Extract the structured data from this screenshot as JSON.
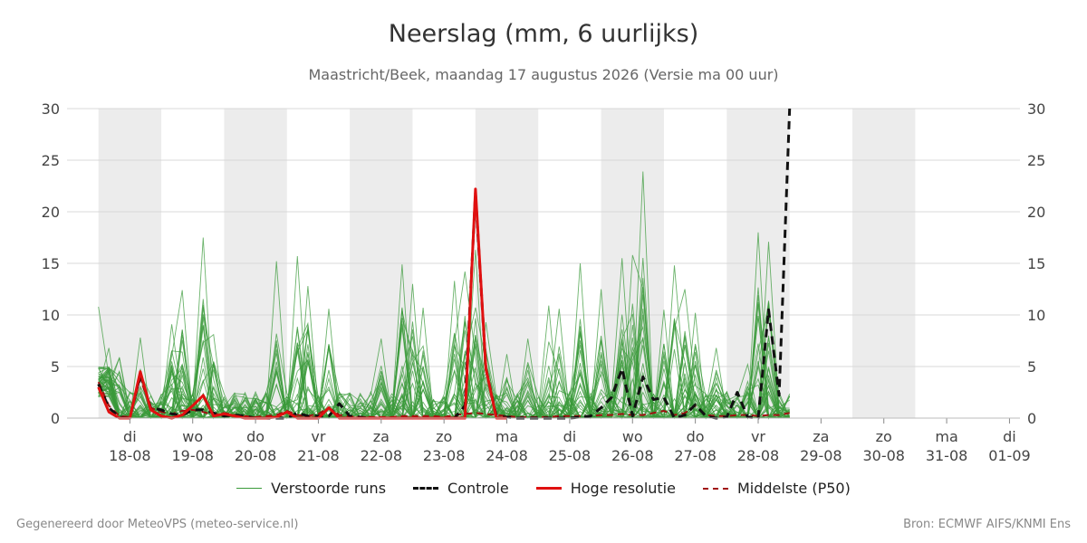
{
  "header": {
    "title": "Neerslag (mm, 6 uurlijks)",
    "subtitle": "Maastricht/Beek, maandag 17 augustus 2026 (Versie ma 00 uur)"
  },
  "footer": {
    "left": "Gegenereerd door MeteoVPS (meteo-service.nl)",
    "right": "Bron: ECMWF AIFS/KNMI Ens"
  },
  "colors": {
    "ensemble": "#3a9a3a",
    "control": "#111111",
    "hires": "#e01010",
    "median": "#a01010",
    "shade": "#ececec",
    "grid": "#d8d8d8"
  },
  "chart_data": {
    "type": "line",
    "ylim": [
      0,
      30
    ],
    "yticks": [
      0,
      5,
      10,
      15,
      20,
      25,
      30
    ],
    "xlim": [
      -3,
      88
    ],
    "day_ticks": [
      {
        "day": "di",
        "date": "18-08"
      },
      {
        "day": "wo",
        "date": "19-08"
      },
      {
        "day": "do",
        "date": "20-08"
      },
      {
        "day": "vr",
        "date": "21-08"
      },
      {
        "day": "za",
        "date": "22-08"
      },
      {
        "day": "zo",
        "date": "23-08"
      },
      {
        "day": "ma",
        "date": "24-08"
      },
      {
        "day": "di",
        "date": "25-08"
      },
      {
        "day": "wo",
        "date": "26-08"
      },
      {
        "day": "do",
        "date": "27-08"
      },
      {
        "day": "vr",
        "date": "28-08"
      },
      {
        "day": "za",
        "date": "29-08"
      },
      {
        "day": "zo",
        "date": "30-08"
      },
      {
        "day": "ma",
        "date": "31-08"
      },
      {
        "day": "di",
        "date": "01-09"
      }
    ],
    "shaded_days": [
      0,
      2,
      4,
      6,
      8,
      10,
      12
    ],
    "series": [
      {
        "name": "Controle",
        "style": "dashed",
        "color": "#111111",
        "values": [
          3.3,
          1.0,
          0.1,
          0.0,
          4.2,
          1.0,
          0.8,
          0.4,
          0.3,
          0.8,
          0.8,
          0.5,
          0.2,
          0.3,
          0.2,
          0.0,
          0.0,
          0.0,
          0.0,
          0.5,
          0.2,
          0.2,
          0.2,
          1.4,
          0.2,
          0.1,
          0.0,
          0.0,
          0.0,
          0.0,
          0.0,
          0.0,
          0.0,
          0.0,
          0.0,
          1.2,
          21.8,
          4.8,
          0.2,
          0.1,
          0.0,
          0.0,
          0.0,
          0.0,
          0.0,
          0.0,
          0.1,
          0.2,
          1.0,
          2.0,
          4.8,
          0.2,
          4.0,
          1.8,
          2.0,
          0.0,
          0.3,
          1.3,
          0.2,
          0.0,
          0.1,
          2.5,
          0.1,
          0.0,
          10.5,
          2.2,
          30.0
        ]
      },
      {
        "name": "Hoge resolutie",
        "style": "solid",
        "color": "#e01010",
        "values": [
          3.0,
          0.6,
          0.0,
          0.0,
          4.5,
          0.8,
          0.2,
          0.0,
          0.3,
          1.2,
          2.2,
          0.2,
          0.4,
          0.2,
          0.0,
          0.0,
          0.0,
          0.1,
          0.6,
          0.0,
          0.0,
          0.0,
          1.0,
          0.0,
          0.0,
          0.0,
          0.0,
          0.0,
          0.0,
          0.0,
          0.0,
          0.0,
          0.0,
          0.0,
          0.0,
          0.0,
          22.2,
          4.8,
          0.0,
          0.0
        ]
      },
      {
        "name": "Middelste (P50)",
        "style": "dashed",
        "color": "#a01010",
        "values": [
          3.5,
          1.2,
          0.2,
          0.1,
          3.8,
          1.0,
          0.6,
          0.4,
          0.7,
          0.8,
          0.6,
          0.3,
          0.5,
          0.3,
          0.2,
          0.1,
          0.2,
          0.3,
          0.7,
          0.3,
          0.2,
          0.4,
          1.0,
          0.3,
          0.2,
          0.1,
          0.1,
          0.1,
          0.1,
          0.2,
          0.2,
          0.2,
          0.2,
          0.1,
          0.3,
          0.4,
          0.5,
          0.4,
          0.3,
          0.2,
          0.1,
          0.1,
          0.1,
          0.1,
          0.2,
          0.2,
          0.2,
          0.2,
          0.3,
          0.3,
          0.4,
          0.3,
          0.3,
          0.5,
          0.7,
          0.3,
          0.5,
          1.2,
          0.3,
          0.2,
          0.2,
          0.3,
          0.3,
          0.2,
          0.3,
          0.3,
          0.5
        ]
      },
      {
        "name": "Verstoorde runs",
        "style": "thin",
        "color": "#3a9a3a",
        "member_count": 50,
        "peaks": [
          [
            0,
            10.8
          ],
          [
            1,
            6.8
          ],
          [
            4,
            7.8
          ],
          [
            7,
            9.1
          ],
          [
            8,
            12.4
          ],
          [
            10,
            17.5
          ],
          [
            11,
            8.1
          ],
          [
            17,
            15.2
          ],
          [
            19,
            15.7
          ],
          [
            20,
            12.8
          ],
          [
            22,
            10.6
          ],
          [
            27,
            7.7
          ],
          [
            29,
            14.9
          ],
          [
            30,
            13.0
          ],
          [
            31,
            10.7
          ],
          [
            34,
            13.3
          ],
          [
            35,
            14.2
          ],
          [
            36,
            16.3
          ],
          [
            37,
            9.3
          ],
          [
            39,
            6.2
          ],
          [
            41,
            7.7
          ],
          [
            43,
            10.9
          ],
          [
            44,
            10.6
          ],
          [
            46,
            15.0
          ],
          [
            48,
            12.5
          ],
          [
            50,
            15.5
          ],
          [
            51,
            15.8
          ],
          [
            52,
            23.9
          ],
          [
            54,
            10.5
          ],
          [
            55,
            14.8
          ],
          [
            56,
            12.5
          ],
          [
            57,
            10.2
          ],
          [
            59,
            6.8
          ],
          [
            62,
            5.2
          ],
          [
            63,
            18.0
          ],
          [
            64,
            17.1
          ]
        ]
      }
    ]
  },
  "legend": [
    {
      "label": "Verstoorde runs",
      "style": "thin",
      "color": "#3a9a3a"
    },
    {
      "label": "Controle",
      "style": "dashed",
      "color": "#111111"
    },
    {
      "label": "Hoge resolutie",
      "style": "solid",
      "color": "#e01010"
    },
    {
      "label": "Middelste (P50)",
      "style": "dashed",
      "color": "#a01010"
    }
  ]
}
